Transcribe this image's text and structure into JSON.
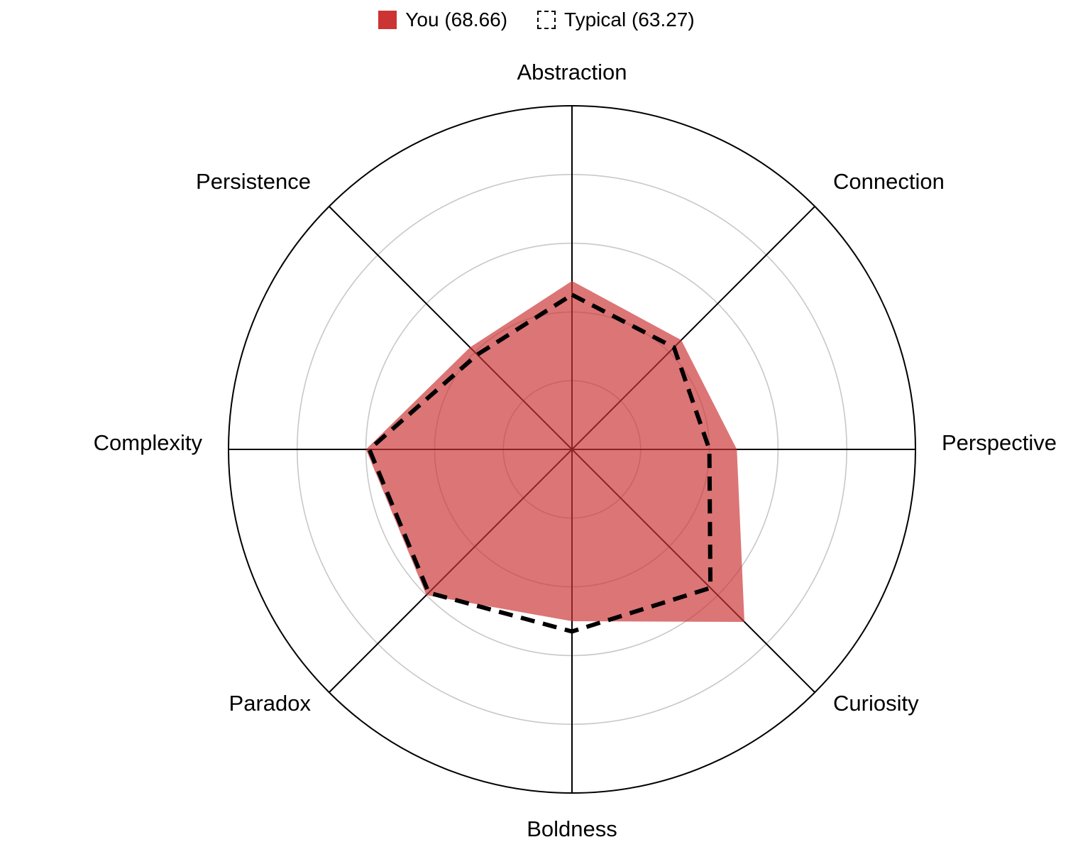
{
  "legend": [
    {
      "label": "You (68.66)",
      "color": "#cc3333"
    },
    {
      "label": "Typical (63.27)",
      "color": "#000000"
    }
  ],
  "chart_data": {
    "type": "radar",
    "categories": [
      "Abstraction",
      "Connection",
      "Perspective",
      "Curiosity",
      "Boldness",
      "Paradox",
      "Complexity",
      "Persistence"
    ],
    "series": [
      {
        "name": "You (68.66)",
        "values": [
          49,
          45,
          48,
          71,
          50,
          60,
          60,
          42
        ],
        "color": "#cc3333",
        "style": "filled"
      },
      {
        "name": "Typical (63.27)",
        "values": [
          45,
          42,
          40,
          57,
          53,
          59,
          59,
          39
        ],
        "color": "#000000",
        "style": "dashed"
      }
    ],
    "rlim": [
      0,
      100
    ],
    "grid_rings": [
      20,
      40,
      60,
      80,
      100
    ],
    "legend_position": "top-center",
    "grid": true
  }
}
